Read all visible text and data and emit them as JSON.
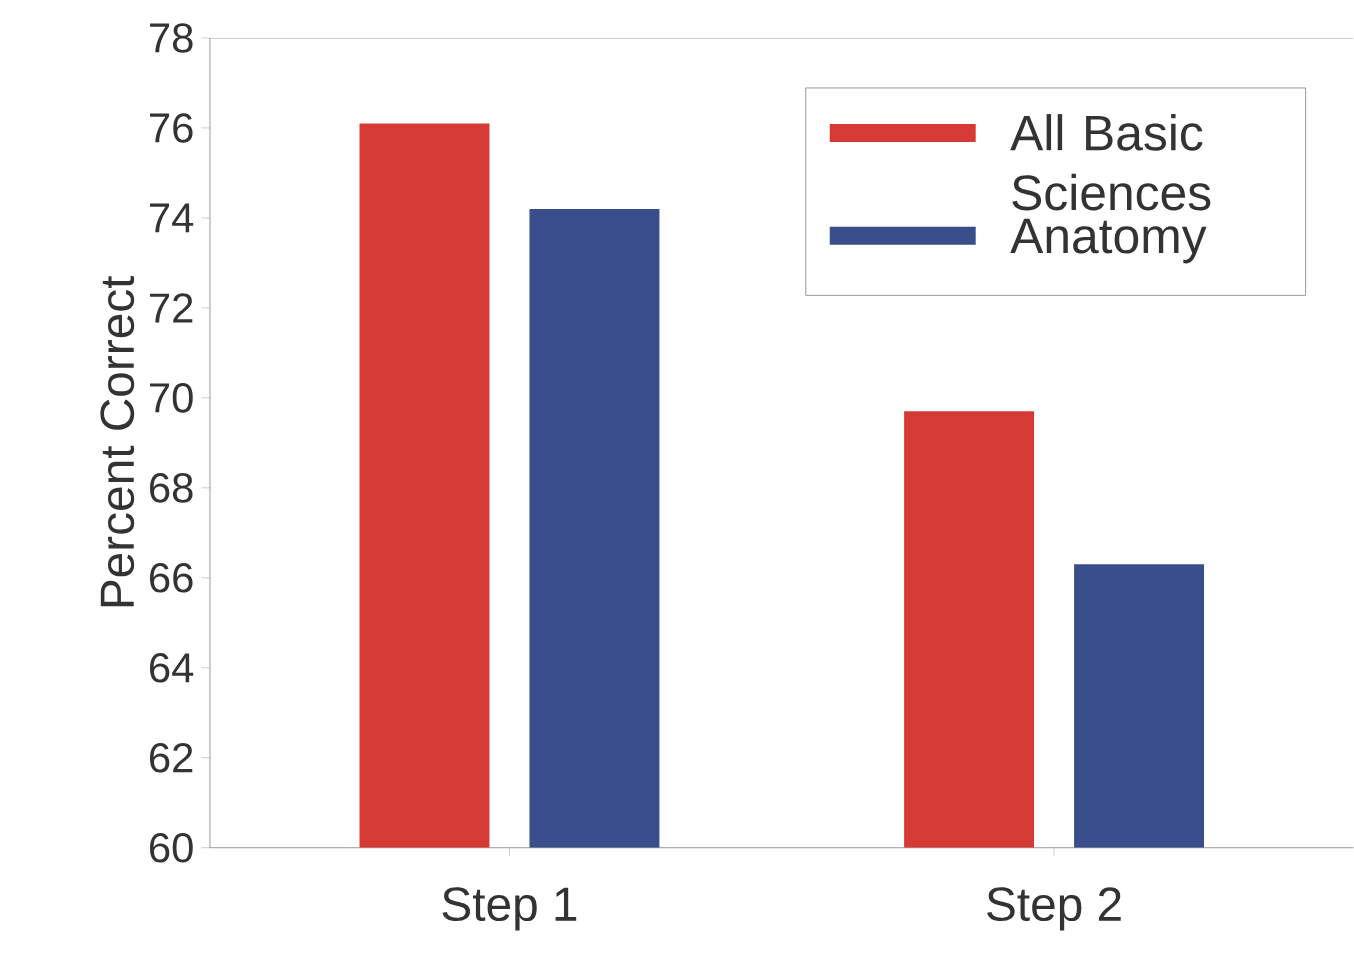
{
  "chart_data": {
    "type": "bar",
    "ylabel": "Percent Correct",
    "categories": [
      "Step 1",
      "Step 2"
    ],
    "series": [
      {
        "name": "All Basic Sciences",
        "color": "#d63a35",
        "values": [
          76.1,
          69.7
        ]
      },
      {
        "name": "Anatomy",
        "color": "#3a4e8c",
        "values": [
          74.2,
          66.3
        ]
      }
    ],
    "ylim": [
      60,
      78
    ],
    "yticks": [
      60,
      62,
      64,
      66,
      68,
      70,
      72,
      74,
      76,
      78
    ],
    "legend": "top right"
  }
}
